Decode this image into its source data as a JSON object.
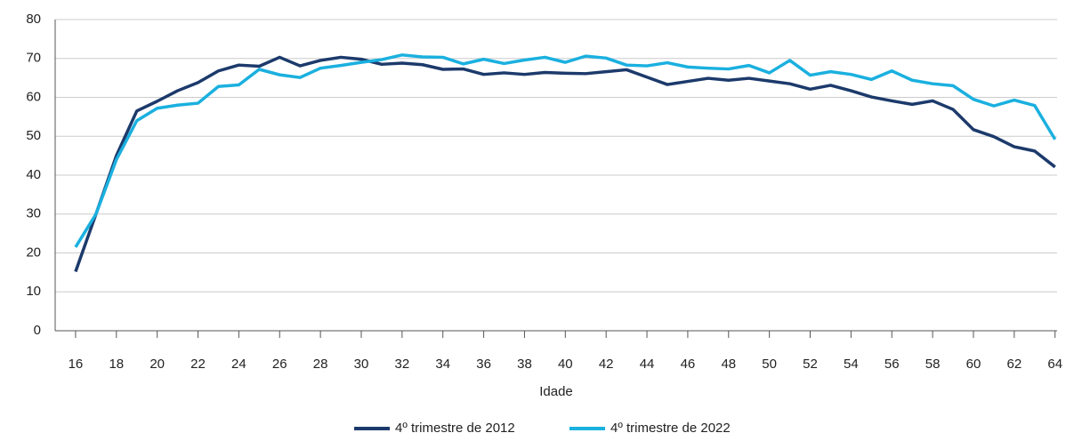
{
  "chart_data": {
    "type": "line",
    "x_label": "Idade",
    "x": [
      16,
      17,
      18,
      19,
      20,
      21,
      22,
      23,
      24,
      25,
      26,
      27,
      28,
      29,
      30,
      31,
      32,
      33,
      34,
      35,
      36,
      37,
      38,
      39,
      40,
      41,
      42,
      43,
      44,
      45,
      46,
      47,
      48,
      49,
      50,
      51,
      52,
      53,
      54,
      55,
      56,
      57,
      58,
      59,
      60,
      61,
      62,
      63,
      64
    ],
    "series": [
      {
        "name": "4º trimestre de 2012",
        "color": "#1c3a6b",
        "values": [
          15.2,
          30,
          45,
          56.5,
          59,
          61.7,
          63.8,
          66.8,
          68.3,
          68,
          70.3,
          68.1,
          69.5,
          70.3,
          69.8,
          68.5,
          68.8,
          68.4,
          67.2,
          67.3,
          65.9,
          66.3,
          65.9,
          66.4,
          66.2,
          66.1,
          66.6,
          67.1,
          65.2,
          63.3,
          64.1,
          64.9,
          64.4,
          64.9,
          64.2,
          63.5,
          62.1,
          63.1,
          61.7,
          60.1,
          59.1,
          58.2,
          59.1,
          56.9,
          51.7,
          49.9,
          47.3,
          46.2,
          42.1
        ]
      },
      {
        "name": "4º trimestre de 2022",
        "color": "#1ab0df",
        "values": [
          21.5,
          30,
          44,
          54,
          57.2,
          58,
          58.5,
          62.8,
          63.2,
          67.2,
          65.8,
          65.1,
          67.5,
          68.2,
          69,
          69.7,
          70.9,
          70.4,
          70.3,
          68.6,
          69.8,
          68.7,
          69.6,
          70.3,
          69,
          70.6,
          70.1,
          68.3,
          68.1,
          68.9,
          67.8,
          67.5,
          67.3,
          68.2,
          66.3,
          69.5,
          65.7,
          66.6,
          65.9,
          64.6,
          66.8,
          64.4,
          63.5,
          63,
          59.5,
          57.8,
          59.3,
          57.9,
          49.2
        ]
      }
    ],
    "xlim": [
      15,
      64.1
    ],
    "xticks": [
      16,
      18,
      20,
      22,
      24,
      26,
      28,
      30,
      32,
      34,
      36,
      38,
      40,
      42,
      44,
      46,
      48,
      50,
      52,
      54,
      56,
      58,
      60,
      62,
      64
    ],
    "ylim": [
      0,
      80
    ],
    "yticks": [
      0,
      10,
      20,
      30,
      40,
      50,
      60,
      70,
      80
    ],
    "grid": true
  }
}
